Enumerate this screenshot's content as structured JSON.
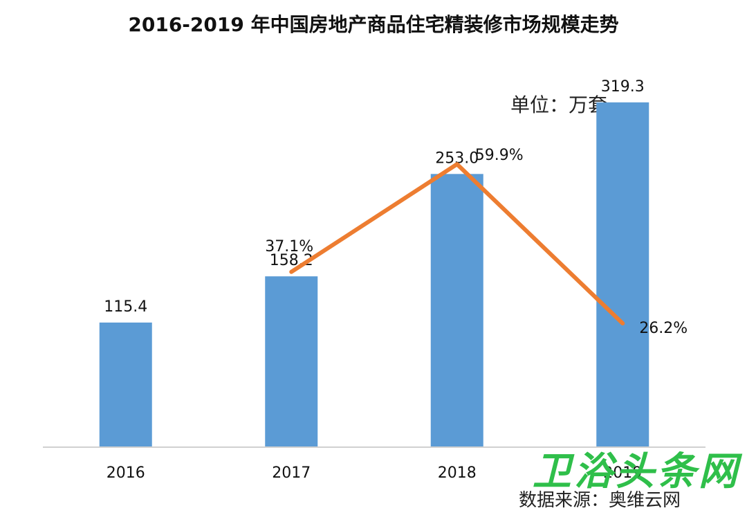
{
  "title": "2016-2019 年中国房地产商品住宅精装修市场规模走势",
  "unit_label": "单位：万套",
  "source_label": "数据来源：奥维云网",
  "watermark_text": "卫浴头条网",
  "colors": {
    "bar": "#5b9bd5",
    "line": "#ed7d31",
    "axis": "#d0d0d0",
    "text": "#111111"
  },
  "chart_data": {
    "type": "bar",
    "categories": [
      "2016",
      "2017",
      "2018",
      "2019"
    ],
    "series": [
      {
        "values": [
          115.4,
          158.2,
          253.0,
          319.3
        ],
        "labels": [
          "115.4",
          "158.2",
          "253.0",
          "319.3"
        ],
        "type": "bar"
      },
      {
        "values": [
          null,
          37.1,
          59.9,
          26.2
        ],
        "labels": [
          "",
          "37.1%",
          "59.9%",
          "26.2%"
        ],
        "type": "line",
        "axis": "secondary"
      }
    ],
    "ylim": [
      0,
      350
    ],
    "y2lim": [
      0,
      80
    ],
    "legend": "none",
    "grid": false
  }
}
